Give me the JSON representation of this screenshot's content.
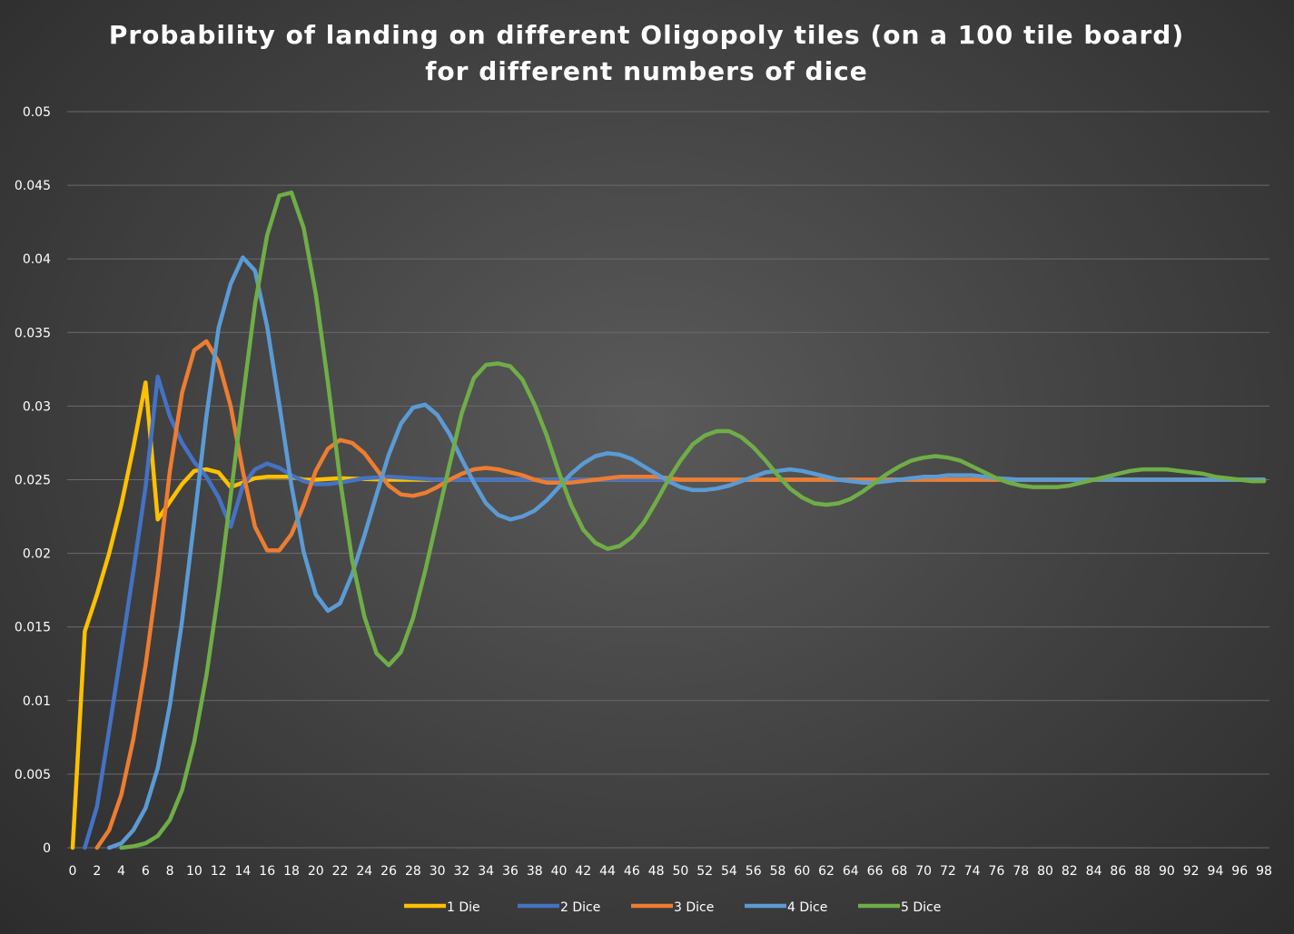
{
  "chart_data": {
    "type": "line",
    "title_line1": "Probability of landing on different Oligopoly tiles (on a 100 tile board)",
    "title_line2": "for different numbers of dice",
    "xlabel": "",
    "ylabel": "",
    "ylim": [
      0,
      0.05
    ],
    "xlim": [
      0,
      98
    ],
    "yticks": [
      "0",
      "0.005",
      "0.01",
      "0.015",
      "0.02",
      "0.025",
      "0.03",
      "0.035",
      "0.04",
      "0.045",
      "0.05"
    ],
    "xticks": [
      "0",
      "2",
      "4",
      "6",
      "8",
      "10",
      "12",
      "14",
      "16",
      "18",
      "20",
      "22",
      "24",
      "26",
      "28",
      "30",
      "32",
      "34",
      "36",
      "38",
      "40",
      "42",
      "44",
      "46",
      "48",
      "50",
      "52",
      "54",
      "56",
      "58",
      "60",
      "62",
      "64",
      "66",
      "68",
      "70",
      "72",
      "74",
      "76",
      "78",
      "80",
      "82",
      "84",
      "86",
      "88",
      "90",
      "92",
      "94",
      "96",
      "98"
    ],
    "grid": "horizontal",
    "legend": "bottom",
    "series": [
      {
        "name": "1 Die",
        "color": "#ffc000",
        "points": [
          [
            0,
            0
          ],
          [
            1,
            0.0147
          ],
          [
            2,
            0.0172
          ],
          [
            3,
            0.02
          ],
          [
            4,
            0.0233
          ],
          [
            5,
            0.0272
          ],
          [
            6,
            0.0316
          ],
          [
            7,
            0.0223
          ],
          [
            8,
            0.0235
          ],
          [
            9,
            0.0247
          ],
          [
            10,
            0.0256
          ],
          [
            11,
            0.0257
          ],
          [
            12,
            0.0255
          ],
          [
            13,
            0.0245
          ],
          [
            14,
            0.0248
          ],
          [
            15,
            0.0251
          ],
          [
            16,
            0.0252
          ],
          [
            17,
            0.0252
          ],
          [
            18,
            0.0252
          ],
          [
            19,
            0.025
          ],
          [
            20,
            0.025
          ],
          [
            22,
            0.0251
          ],
          [
            26,
            0.025
          ],
          [
            98,
            0.025
          ]
        ]
      },
      {
        "name": "2 Dice",
        "color": "#4472c4",
        "points": [
          [
            1,
            0
          ],
          [
            2,
            0.0028
          ],
          [
            3,
            0.008
          ],
          [
            4,
            0.0134
          ],
          [
            5,
            0.0188
          ],
          [
            6,
            0.0245
          ],
          [
            7,
            0.032
          ],
          [
            8,
            0.0293
          ],
          [
            9,
            0.0275
          ],
          [
            10,
            0.0262
          ],
          [
            11,
            0.0252
          ],
          [
            12,
            0.0238
          ],
          [
            13,
            0.0218
          ],
          [
            14,
            0.0246
          ],
          [
            15,
            0.0257
          ],
          [
            16,
            0.0261
          ],
          [
            17,
            0.0258
          ],
          [
            18,
            0.0253
          ],
          [
            19,
            0.0249
          ],
          [
            20,
            0.0247
          ],
          [
            21,
            0.0247
          ],
          [
            22,
            0.0248
          ],
          [
            24,
            0.0251
          ],
          [
            26,
            0.0252
          ],
          [
            28,
            0.0251
          ],
          [
            30,
            0.025
          ],
          [
            98,
            0.025
          ]
        ]
      },
      {
        "name": "3 Dice",
        "color": "#ed7d31",
        "points": [
          [
            2,
            0
          ],
          [
            3,
            0.0012
          ],
          [
            4,
            0.0036
          ],
          [
            5,
            0.0074
          ],
          [
            6,
            0.0124
          ],
          [
            7,
            0.0185
          ],
          [
            8,
            0.0256
          ],
          [
            9,
            0.0309
          ],
          [
            10,
            0.0338
          ],
          [
            11,
            0.0344
          ],
          [
            12,
            0.033
          ],
          [
            13,
            0.03
          ],
          [
            14,
            0.0256
          ],
          [
            15,
            0.0218
          ],
          [
            16,
            0.0202
          ],
          [
            17,
            0.0202
          ],
          [
            18,
            0.0213
          ],
          [
            19,
            0.0233
          ],
          [
            20,
            0.0256
          ],
          [
            21,
            0.0271
          ],
          [
            22,
            0.0277
          ],
          [
            23,
            0.0275
          ],
          [
            24,
            0.0268
          ],
          [
            25,
            0.0257
          ],
          [
            26,
            0.0246
          ],
          [
            27,
            0.024
          ],
          [
            28,
            0.0239
          ],
          [
            29,
            0.0241
          ],
          [
            30,
            0.0245
          ],
          [
            31,
            0.025
          ],
          [
            32,
            0.0254
          ],
          [
            33,
            0.0257
          ],
          [
            34,
            0.0258
          ],
          [
            35,
            0.0257
          ],
          [
            36,
            0.0255
          ],
          [
            37,
            0.0253
          ],
          [
            38,
            0.025
          ],
          [
            39,
            0.0248
          ],
          [
            40,
            0.0248
          ],
          [
            41,
            0.0248
          ],
          [
            42,
            0.0249
          ],
          [
            43,
            0.025
          ],
          [
            44,
            0.0251
          ],
          [
            45,
            0.0252
          ],
          [
            46,
            0.0252
          ],
          [
            47,
            0.0252
          ],
          [
            48,
            0.0252
          ],
          [
            49,
            0.0251
          ],
          [
            50,
            0.025
          ],
          [
            52,
            0.025
          ],
          [
            98,
            0.025
          ]
        ]
      },
      {
        "name": "4 Dice",
        "color": "#5b9bd5",
        "points": [
          [
            3,
            0
          ],
          [
            4,
            0.0003
          ],
          [
            5,
            0.0012
          ],
          [
            6,
            0.0027
          ],
          [
            7,
            0.0054
          ],
          [
            8,
            0.0097
          ],
          [
            9,
            0.0154
          ],
          [
            10,
            0.0222
          ],
          [
            11,
            0.0293
          ],
          [
            12,
            0.0353
          ],
          [
            13,
            0.0383
          ],
          [
            14,
            0.0401
          ],
          [
            15,
            0.0392
          ],
          [
            16,
            0.0354
          ],
          [
            17,
            0.0301
          ],
          [
            18,
            0.0246
          ],
          [
            19,
            0.0201
          ],
          [
            20,
            0.0172
          ],
          [
            21,
            0.0161
          ],
          [
            22,
            0.0166
          ],
          [
            23,
            0.0186
          ],
          [
            24,
            0.0212
          ],
          [
            25,
            0.024
          ],
          [
            26,
            0.0267
          ],
          [
            27,
            0.0288
          ],
          [
            28,
            0.0299
          ],
          [
            29,
            0.0301
          ],
          [
            30,
            0.0294
          ],
          [
            31,
            0.0281
          ],
          [
            32,
            0.0264
          ],
          [
            33,
            0.0248
          ],
          [
            34,
            0.0234
          ],
          [
            35,
            0.0226
          ],
          [
            36,
            0.0223
          ],
          [
            37,
            0.0225
          ],
          [
            38,
            0.0229
          ],
          [
            39,
            0.0236
          ],
          [
            40,
            0.0245
          ],
          [
            41,
            0.0254
          ],
          [
            42,
            0.0261
          ],
          [
            43,
            0.0266
          ],
          [
            44,
            0.0268
          ],
          [
            45,
            0.0267
          ],
          [
            46,
            0.0264
          ],
          [
            47,
            0.0259
          ],
          [
            48,
            0.0254
          ],
          [
            49,
            0.0249
          ],
          [
            50,
            0.0245
          ],
          [
            51,
            0.0243
          ],
          [
            52,
            0.0243
          ],
          [
            53,
            0.0244
          ],
          [
            54,
            0.0246
          ],
          [
            55,
            0.0249
          ],
          [
            56,
            0.0252
          ],
          [
            57,
            0.0255
          ],
          [
            58,
            0.0256
          ],
          [
            59,
            0.0257
          ],
          [
            60,
            0.0256
          ],
          [
            61,
            0.0254
          ],
          [
            62,
            0.0252
          ],
          [
            63,
            0.025
          ],
          [
            64,
            0.0249
          ],
          [
            65,
            0.0248
          ],
          [
            66,
            0.0248
          ],
          [
            67,
            0.0249
          ],
          [
            68,
            0.025
          ],
          [
            69,
            0.0251
          ],
          [
            70,
            0.0252
          ],
          [
            71,
            0.0252
          ],
          [
            72,
            0.0253
          ],
          [
            73,
            0.0253
          ],
          [
            74,
            0.0253
          ],
          [
            75,
            0.0252
          ],
          [
            76,
            0.0251
          ],
          [
            78,
            0.025
          ],
          [
            80,
            0.025
          ],
          [
            98,
            0.025
          ]
        ]
      },
      {
        "name": "5 Dice",
        "color": "#70ad47",
        "points": [
          [
            4,
            0
          ],
          [
            5,
            0.0001
          ],
          [
            6,
            0.0003
          ],
          [
            7,
            0.0008
          ],
          [
            8,
            0.0019
          ],
          [
            9,
            0.0039
          ],
          [
            10,
            0.0072
          ],
          [
            11,
            0.0117
          ],
          [
            12,
            0.0174
          ],
          [
            13,
            0.0239
          ],
          [
            14,
            0.0305
          ],
          [
            15,
            0.0369
          ],
          [
            16,
            0.0416
          ],
          [
            17,
            0.0443
          ],
          [
            18,
            0.0445
          ],
          [
            19,
            0.0421
          ],
          [
            20,
            0.0376
          ],
          [
            21,
            0.0316
          ],
          [
            22,
            0.025
          ],
          [
            23,
            0.0195
          ],
          [
            24,
            0.0157
          ],
          [
            25,
            0.0132
          ],
          [
            26,
            0.0124
          ],
          [
            27,
            0.0133
          ],
          [
            28,
            0.0156
          ],
          [
            29,
            0.0188
          ],
          [
            30,
            0.0224
          ],
          [
            31,
            0.026
          ],
          [
            32,
            0.0295
          ],
          [
            33,
            0.0319
          ],
          [
            34,
            0.0328
          ],
          [
            35,
            0.0329
          ],
          [
            36,
            0.0327
          ],
          [
            37,
            0.0318
          ],
          [
            38,
            0.0301
          ],
          [
            39,
            0.028
          ],
          [
            40,
            0.0255
          ],
          [
            41,
            0.0233
          ],
          [
            42,
            0.0216
          ],
          [
            43,
            0.0207
          ],
          [
            44,
            0.0203
          ],
          [
            45,
            0.0205
          ],
          [
            46,
            0.0211
          ],
          [
            47,
            0.0221
          ],
          [
            48,
            0.0235
          ],
          [
            49,
            0.025
          ],
          [
            50,
            0.0263
          ],
          [
            51,
            0.0274
          ],
          [
            52,
            0.028
          ],
          [
            53,
            0.0283
          ],
          [
            54,
            0.0283
          ],
          [
            55,
            0.0279
          ],
          [
            56,
            0.0272
          ],
          [
            57,
            0.0263
          ],
          [
            58,
            0.0253
          ],
          [
            59,
            0.0244
          ],
          [
            60,
            0.0238
          ],
          [
            61,
            0.0234
          ],
          [
            62,
            0.0233
          ],
          [
            63,
            0.0234
          ],
          [
            64,
            0.0237
          ],
          [
            65,
            0.0242
          ],
          [
            66,
            0.0248
          ],
          [
            67,
            0.0254
          ],
          [
            68,
            0.0259
          ],
          [
            69,
            0.0263
          ],
          [
            70,
            0.0265
          ],
          [
            71,
            0.0266
          ],
          [
            72,
            0.0265
          ],
          [
            73,
            0.0263
          ],
          [
            74,
            0.0259
          ],
          [
            75,
            0.0255
          ],
          [
            76,
            0.0251
          ],
          [
            77,
            0.0248
          ],
          [
            78,
            0.0246
          ],
          [
            79,
            0.0245
          ],
          [
            80,
            0.0245
          ],
          [
            81,
            0.0245
          ],
          [
            82,
            0.0246
          ],
          [
            83,
            0.0248
          ],
          [
            84,
            0.025
          ],
          [
            85,
            0.0252
          ],
          [
            86,
            0.0254
          ],
          [
            87,
            0.0256
          ],
          [
            88,
            0.0257
          ],
          [
            89,
            0.0257
          ],
          [
            90,
            0.0257
          ],
          [
            91,
            0.0256
          ],
          [
            92,
            0.0255
          ],
          [
            93,
            0.0254
          ],
          [
            94,
            0.0252
          ],
          [
            95,
            0.0251
          ],
          [
            96,
            0.025
          ],
          [
            97,
            0.0249
          ],
          [
            98,
            0.0249
          ]
        ]
      }
    ]
  }
}
